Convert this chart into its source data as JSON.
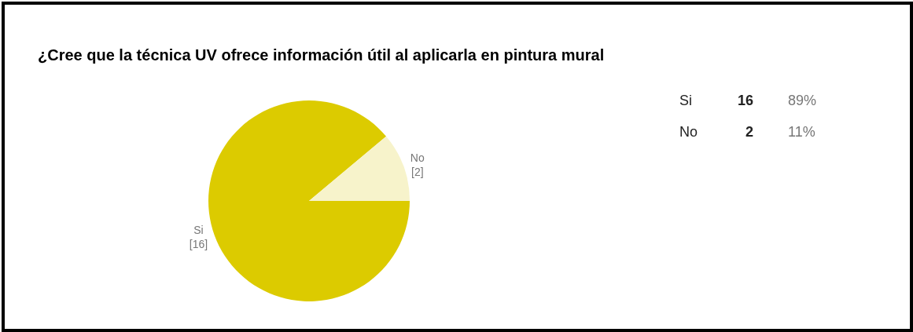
{
  "chart_data": {
    "type": "pie",
    "title": "¿Cree que la técnica UV ofrece información útil al aplicarla en pintura mural",
    "categories": [
      "Si",
      "No"
    ],
    "values": [
      16,
      2
    ],
    "colors": [
      "#dccb00",
      "#f7f3cb"
    ],
    "value_labels": [
      "[16]",
      "[2]"
    ],
    "annotations": [
      "Si",
      "16",
      "89%",
      "No",
      "2",
      "11%"
    ],
    "legend": false
  }
}
